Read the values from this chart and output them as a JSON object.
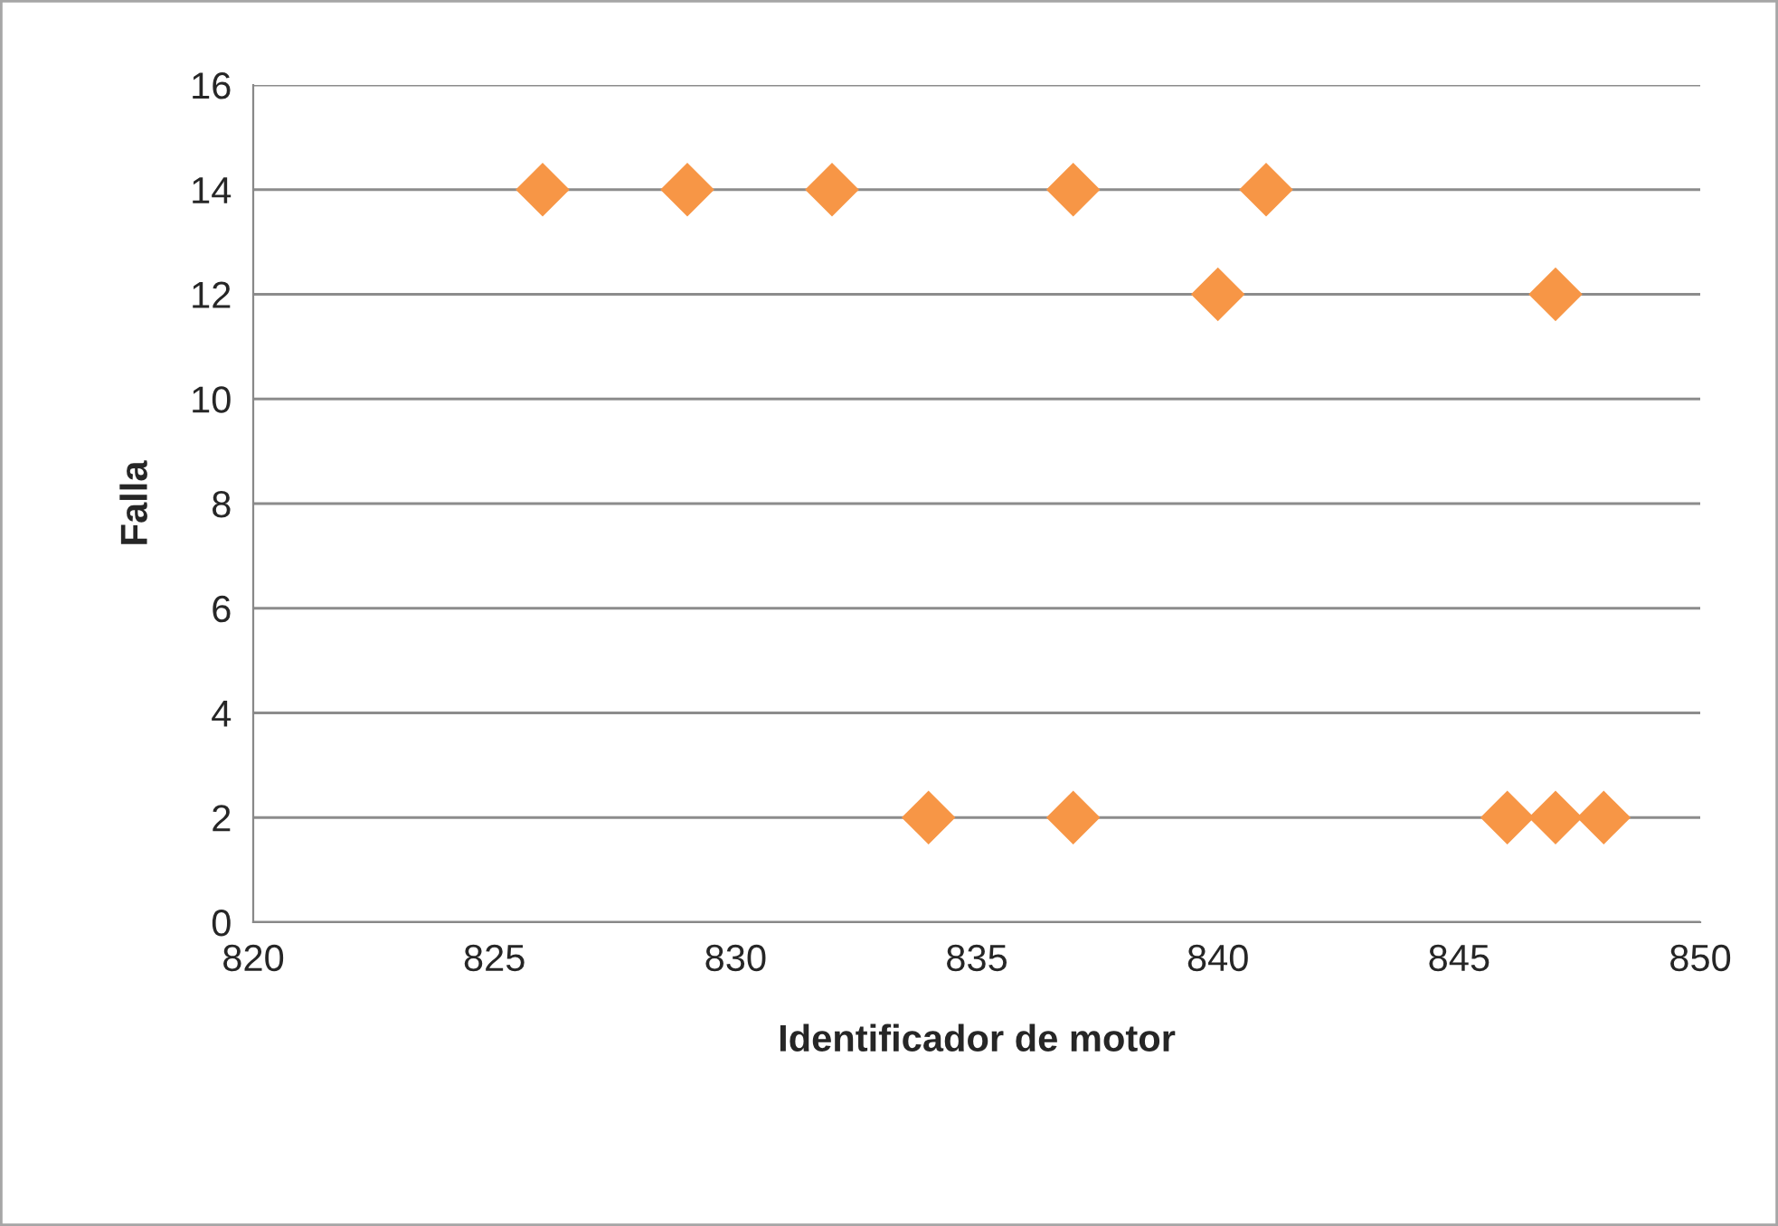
{
  "chart_data": {
    "type": "scatter",
    "xlabel": "Identificador de motor",
    "ylabel": "Falla",
    "series": [
      {
        "color": "#f79646",
        "x": [
          826,
          829,
          832,
          837,
          841,
          840,
          847,
          834,
          837,
          846,
          847,
          848
        ],
        "values": [
          14,
          14,
          14,
          14,
          14,
          12,
          12,
          2,
          2,
          2,
          2,
          2
        ]
      }
    ],
    "xlim": [
      820,
      850
    ],
    "xticks": [
      820,
      825,
      830,
      835,
      840,
      845,
      850
    ],
    "ylim": [
      0,
      16
    ],
    "yticks": [
      0,
      2,
      4,
      6,
      8,
      10,
      12,
      14,
      16
    ],
    "grid": "y",
    "marker": "diamond",
    "legend": false
  }
}
